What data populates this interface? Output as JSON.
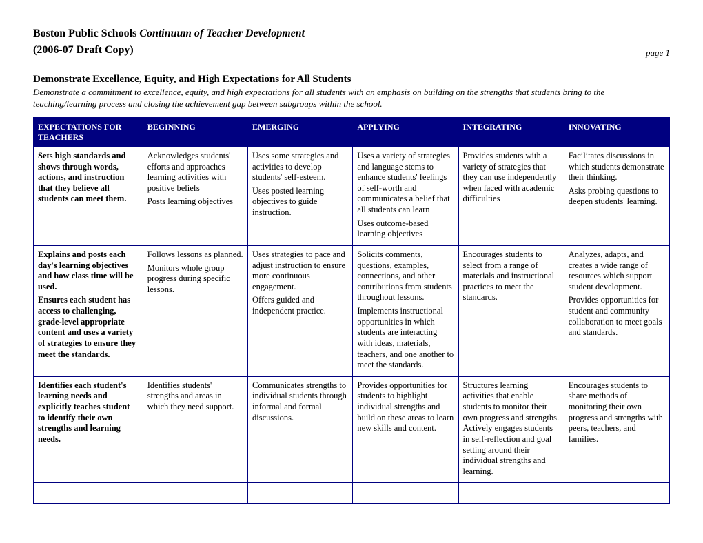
{
  "header": {
    "org": "Boston Public Schools",
    "title_italic": "Continuum of Teacher Development",
    "subtitle": "(2006-07 Draft Copy)",
    "page_label": "page 1"
  },
  "section": {
    "title": "Demonstrate Excellence, Equity, and High Expectations for All Students",
    "desc": "Demonstrate a commitment to excellence, equity, and high expectations for all students with an emphasis on building on the strengths that students bring to the teaching/learning process and closing the achievement gap between subgroups within the school."
  },
  "table": {
    "header_bg": "#000080",
    "header_fg": "#ffffff",
    "border_color": "#000080",
    "columns": [
      "EXPECTATIONS FOR TEACHERS",
      "BEGINNING",
      "EMERGING",
      "APPLYING",
      "INTEGRATING",
      "INNOVATING"
    ],
    "col_widths": [
      "17.2%",
      "16.5%",
      "16.5%",
      "16.6%",
      "16.6%",
      "16.6%"
    ],
    "rows": [
      {
        "c0": [
          "Sets high standards and shows through words, actions, and instruction that they believe all students can meet them."
        ],
        "c1": [
          "Acknowledges students' efforts and approaches learning activities with positive beliefs",
          "Posts learning objectives"
        ],
        "c2": [
          "Uses some strategies and activities to develop students' self-esteem.",
          "Uses posted learning objectives to guide instruction."
        ],
        "c3": [
          "Uses a variety of strategies and language stems to enhance students' feelings of self-worth and communicates a belief that all students can learn",
          "Uses outcome-based learning objectives"
        ],
        "c4": [
          "Provides students with a variety of strategies that they can use independently when faced with academic difficulties"
        ],
        "c5": [
          "Facilitates discussions in which students demonstrate their thinking.",
          "Asks probing questions to deepen students' learning."
        ]
      },
      {
        "c0": [
          "Explains and posts each day's learning objectives and how class time will be used.",
          "Ensures each student has access to challenging, grade-level appropriate content and uses a variety of strategies to ensure they meet the standards."
        ],
        "c1": [
          "Follows lessons as planned.",
          "Monitors whole group progress during specific lessons."
        ],
        "c2": [
          "Uses strategies to pace and adjust instruction to ensure more continuous engagement.",
          "Offers guided and independent practice."
        ],
        "c3": [
          "Solicits comments, questions, examples, connections, and other contributions from students throughout lessons.",
          "Implements instructional opportunities in which students are interacting with ideas, materials, teachers, and one another to meet the standards."
        ],
        "c4": [
          "Encourages students to select from a range of materials and instructional practices to meet the standards."
        ],
        "c5": [
          "Analyzes, adapts, and creates a wide range of resources which support student development.",
          "Provides opportunities for student and community collaboration to meet goals and standards."
        ]
      },
      {
        "c0": [
          "Identifies each student's learning needs and explicitly teaches student to identify their own strengths and learning needs."
        ],
        "c1": [
          "Identifies students' strengths and areas in which they need support."
        ],
        "c2": [
          "Communicates strengths to individual students through informal and formal discussions."
        ],
        "c3": [
          "Provides opportunities for students to highlight individual strengths and build on these areas to learn new skills and content."
        ],
        "c4": [
          "Structures learning activities that enable students to monitor their own progress and strengths. Actively engages students in self-reflection and goal setting around their individual strengths and learning."
        ],
        "c5": [
          "Encourages students to share methods of monitoring their own progress and strengths with peers, teachers, and families."
        ]
      }
    ]
  }
}
